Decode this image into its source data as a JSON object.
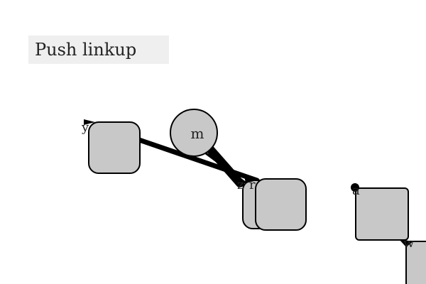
{
  "title": "Push linkup",
  "nodes": {
    "circle_label": "m"
  },
  "port_labels": {
    "y": "y",
    "z": "z",
    "r": "r",
    "a": "a",
    "w": "w"
  },
  "colors": {
    "node_fill": "#c8c8c8",
    "stroke": "#000000",
    "button_bg": "#efefef"
  }
}
